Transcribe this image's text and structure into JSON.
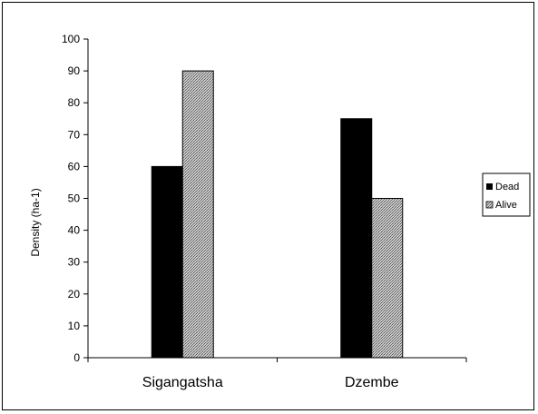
{
  "chart_data": {
    "type": "bar",
    "categories": [
      "Sigangatsha",
      "Dzembe"
    ],
    "series": [
      {
        "name": "Dead",
        "values": [
          60,
          75
        ]
      },
      {
        "name": "Alive",
        "values": [
          90,
          50
        ]
      }
    ],
    "ylabel": "Density (ha-1)",
    "ylim": [
      0,
      100
    ],
    "yticks": [
      0,
      10,
      20,
      30,
      40,
      50,
      60,
      70,
      80,
      90,
      100
    ],
    "grid": false,
    "legend": "right",
    "colors": {
      "Dead": "#000000",
      "Alive": "#a6a6a6"
    }
  }
}
